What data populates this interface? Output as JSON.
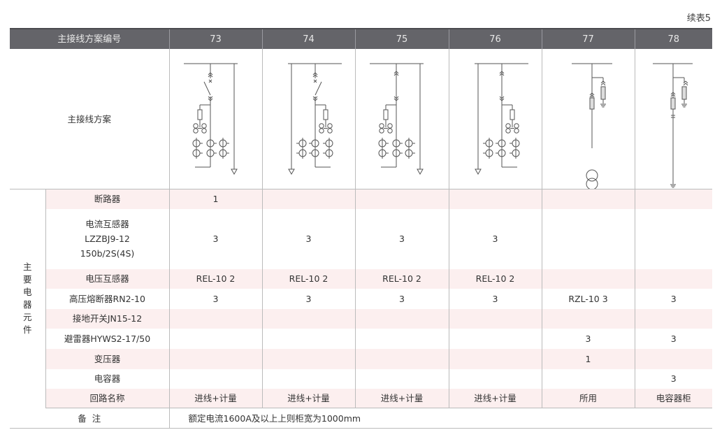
{
  "table_title": "续表5",
  "header": {
    "label": "主接线方案编号",
    "schemes": [
      "73",
      "74",
      "75",
      "76",
      "77",
      "78"
    ]
  },
  "diagram_row": {
    "label": "主接线方案",
    "diagrams": [
      "incoming-breaker-metering",
      "incoming-breaker-metering-mirrored",
      "incoming-metering",
      "incoming-metering-mirrored",
      "station-transformer",
      "capacitor"
    ]
  },
  "group_label": [
    "主",
    "要",
    "电",
    "器",
    "元",
    "件"
  ],
  "rows": [
    {
      "label": [
        "断路器"
      ],
      "values": [
        "1",
        "",
        "",
        "",
        "",
        ""
      ]
    },
    {
      "label": [
        "电流互感器",
        "LZZBJ9-12",
        "150b/2S(4S)"
      ],
      "values": [
        "3",
        "3",
        "3",
        "3",
        "",
        ""
      ]
    },
    {
      "label": [
        "电压互感器"
      ],
      "values": [
        "REL-10 2",
        "REL-10 2",
        "REL-10 2",
        "REL-10 2",
        "",
        ""
      ]
    },
    {
      "label": [
        "高压熔断器RN2-10"
      ],
      "values": [
        "3",
        "3",
        "3",
        "3",
        "RZL-10 3",
        "3"
      ]
    },
    {
      "label": [
        "接地开关JN15-12"
      ],
      "values": [
        "",
        "",
        "",
        "",
        "",
        ""
      ]
    },
    {
      "label": [
        "避雷器HYWS2-17/50"
      ],
      "values": [
        "",
        "",
        "",
        "",
        "3",
        "3"
      ]
    },
    {
      "label": [
        "变压器"
      ],
      "values": [
        "",
        "",
        "",
        "",
        "1",
        ""
      ]
    },
    {
      "label": [
        "电容器"
      ],
      "values": [
        "",
        "",
        "",
        "",
        "",
        "3"
      ]
    },
    {
      "label": [
        "回路名称"
      ],
      "values": [
        "进线+计量",
        "进线+计量",
        "进线+计量",
        "进线+计量",
        "所用",
        "电容器柜"
      ]
    }
  ],
  "remark": {
    "label": "备  注",
    "value": "额定电流1600A及以上上则柜宽为1000mm"
  },
  "colors": {
    "header_bg": "#646469",
    "stripe": "#fcefef",
    "line": "#555555"
  }
}
